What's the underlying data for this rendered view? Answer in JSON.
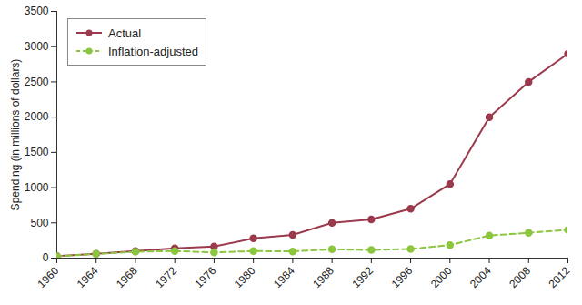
{
  "chart_data": {
    "type": "line",
    "y_label": "Spending (in millions of dollars)",
    "x": [
      1960,
      1964,
      1968,
      1972,
      1976,
      1980,
      1984,
      1988,
      1992,
      1996,
      2000,
      2004,
      2008,
      2012
    ],
    "series": [
      {
        "name": "Actual",
        "color": "#9b3a4c",
        "marker": "circle",
        "line_style": "solid",
        "values": [
          30,
          60,
          100,
          140,
          165,
          280,
          330,
          500,
          550,
          700,
          1050,
          2000,
          2500,
          2900
        ]
      },
      {
        "name": "Inflation-adjusted",
        "color": "#8cc63f",
        "marker": "circle",
        "line_style": "dashed",
        "values": [
          25,
          60,
          90,
          100,
          80,
          100,
          95,
          125,
          115,
          130,
          185,
          320,
          360,
          400
        ]
      }
    ],
    "xlim": [
      1960,
      2012
    ],
    "xticks": [
      1960,
      1964,
      1968,
      1972,
      1976,
      1980,
      1984,
      1988,
      1992,
      1996,
      2000,
      2004,
      2008,
      2012
    ],
    "ylim": [
      0,
      3500
    ],
    "yticks": [
      0,
      500,
      1000,
      1500,
      2000,
      2500,
      3000,
      3500
    ],
    "grid": false,
    "legend": "upper left"
  }
}
